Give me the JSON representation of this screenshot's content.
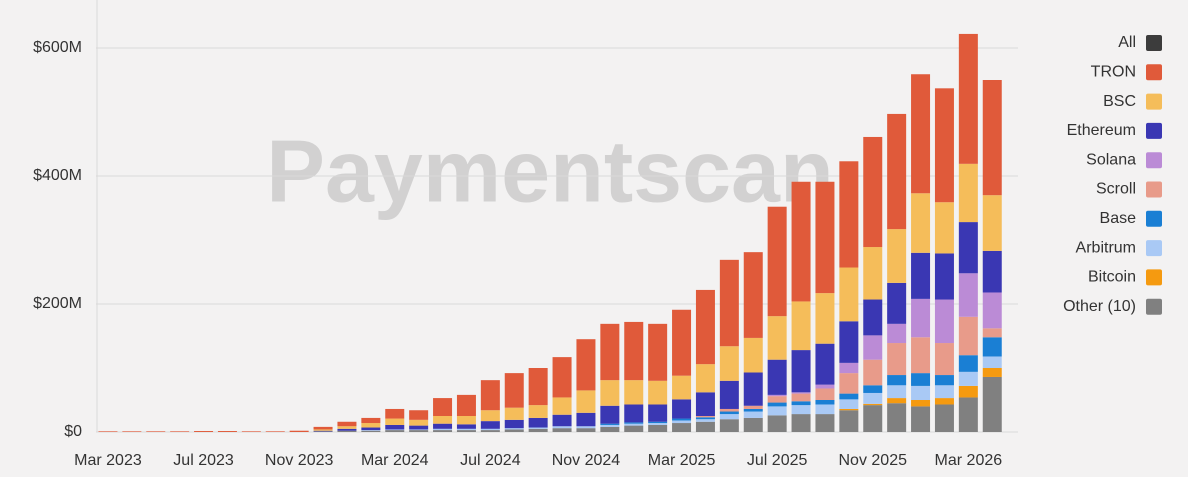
{
  "chart_data": {
    "type": "stacked_bar",
    "watermark": "Paymentscan",
    "categories": [
      "Mar 2023",
      null,
      null,
      null,
      "Jul 2023",
      null,
      null,
      null,
      "Nov 2023",
      null,
      null,
      null,
      "Mar 2024",
      null,
      null,
      null,
      "Jul 2024",
      null,
      null,
      null,
      "Nov 2024",
      null,
      null,
      null,
      "Mar 2025",
      null,
      null,
      null,
      "Jul 2025",
      null,
      null,
      null,
      "Nov 2025",
      null,
      null,
      null,
      "Mar 2026",
      null
    ],
    "series": [
      {
        "name": "All",
        "color": "#3c3c3c",
        "values": [
          null,
          null,
          null,
          null,
          null,
          null,
          null,
          null,
          null,
          null,
          null,
          null,
          null,
          null,
          null,
          null,
          null,
          null,
          null,
          null,
          null,
          null,
          null,
          null,
          null,
          null,
          null,
          null,
          null,
          null,
          null,
          null,
          null,
          null,
          null,
          null,
          null,
          null
        ]
      },
      {
        "name": "TRON",
        "color": "#e05a3a",
        "values": [
          1,
          1,
          1,
          1,
          1.5,
          1.5,
          1,
          1,
          2,
          4,
          7,
          8,
          15,
          15,
          28,
          33,
          47,
          54,
          58,
          63,
          80,
          88,
          91,
          89,
          103,
          116,
          135,
          134,
          171,
          187,
          174,
          166,
          172,
          180,
          186,
          178,
          203,
          180
        ]
      },
      {
        "name": "BSC",
        "color": "#f5bd5a",
        "values": [
          0,
          0,
          0,
          0,
          0,
          0,
          0,
          0,
          0,
          2,
          4,
          7,
          10,
          9,
          12,
          13,
          17,
          19,
          20,
          27,
          35,
          40,
          38,
          37,
          37,
          44,
          54,
          54,
          68,
          76,
          79,
          84,
          82,
          84,
          93,
          80,
          91,
          87
        ]
      },
      {
        "name": "Ethereum",
        "color": "#3a37b3",
        "values": [
          0,
          0,
          0,
          0,
          0,
          0,
          0,
          0,
          0,
          1,
          3,
          4,
          7,
          6,
          8,
          7,
          12,
          13,
          15,
          18,
          21,
          28,
          28,
          27,
          30,
          37,
          44,
          52,
          55,
          66,
          64,
          65,
          56,
          64,
          72,
          72,
          80,
          65
        ]
      },
      {
        "name": "Solana",
        "color": "#bb8bd6",
        "values": [
          0,
          0,
          0,
          0,
          0,
          0,
          0,
          0,
          0,
          0,
          0,
          0,
          0,
          0,
          0,
          0,
          0,
          0,
          0,
          0,
          0,
          0,
          0,
          0,
          0,
          0,
          0,
          0,
          2,
          2,
          6,
          16,
          38,
          30,
          60,
          68,
          68,
          56
        ]
      },
      {
        "name": "Scroll",
        "color": "#e89b8a",
        "values": [
          0,
          0,
          0,
          0,
          0,
          0,
          0,
          0,
          0,
          0,
          0,
          0,
          0,
          0,
          0,
          0,
          0,
          0,
          0,
          0,
          0,
          0,
          0,
          0,
          0,
          2,
          4,
          5,
          10,
          12,
          18,
          32,
          40,
          50,
          56,
          50,
          60,
          14
        ]
      },
      {
        "name": "Base",
        "color": "#1a7fd4",
        "values": [
          0,
          0,
          0,
          0,
          0,
          0,
          0,
          0,
          0,
          0,
          0,
          0,
          0,
          0,
          0,
          0,
          0,
          0,
          0,
          0,
          0,
          2,
          2,
          2,
          3,
          3,
          4,
          4,
          6,
          6,
          7,
          9,
          12,
          16,
          20,
          16,
          26,
          30
        ]
      },
      {
        "name": "Arbitrum",
        "color": "#a9c9f5",
        "values": [
          0,
          0,
          0,
          0,
          0,
          0,
          0,
          0,
          0,
          0,
          0,
          1,
          1,
          1,
          2,
          2,
          2,
          2,
          2,
          3,
          3,
          3,
          3,
          3,
          4,
          4,
          8,
          10,
          14,
          14,
          15,
          15,
          17,
          20,
          22,
          20,
          22,
          18
        ]
      },
      {
        "name": "Bitcoin",
        "color": "#f59a10",
        "values": [
          0,
          0,
          0,
          0,
          0,
          0,
          0,
          0,
          0,
          0,
          0,
          0,
          0,
          0,
          0,
          0,
          0,
          0,
          0,
          0,
          0,
          0,
          0,
          0,
          0,
          0,
          0,
          0,
          0,
          0,
          0,
          2,
          2,
          8,
          10,
          10,
          18,
          14
        ]
      },
      {
        "name": "Other (10)",
        "color": "#808080",
        "values": [
          0,
          0,
          0,
          0,
          0,
          0,
          0,
          0,
          0,
          1,
          2,
          2,
          3,
          3,
          3,
          3,
          3,
          4,
          5,
          6,
          6,
          8,
          10,
          11,
          14,
          16,
          20,
          22,
          26,
          28,
          28,
          34,
          42,
          45,
          40,
          43,
          54,
          86
        ]
      }
    ],
    "ylim": [
      0,
      675
    ],
    "yticks": [
      {
        "value": 0,
        "label": "$0"
      },
      {
        "value": 200,
        "label": "$200M"
      },
      {
        "value": 400,
        "label": "$400M"
      },
      {
        "value": 600,
        "label": "$600M"
      }
    ],
    "grid": true,
    "legend": "right"
  }
}
